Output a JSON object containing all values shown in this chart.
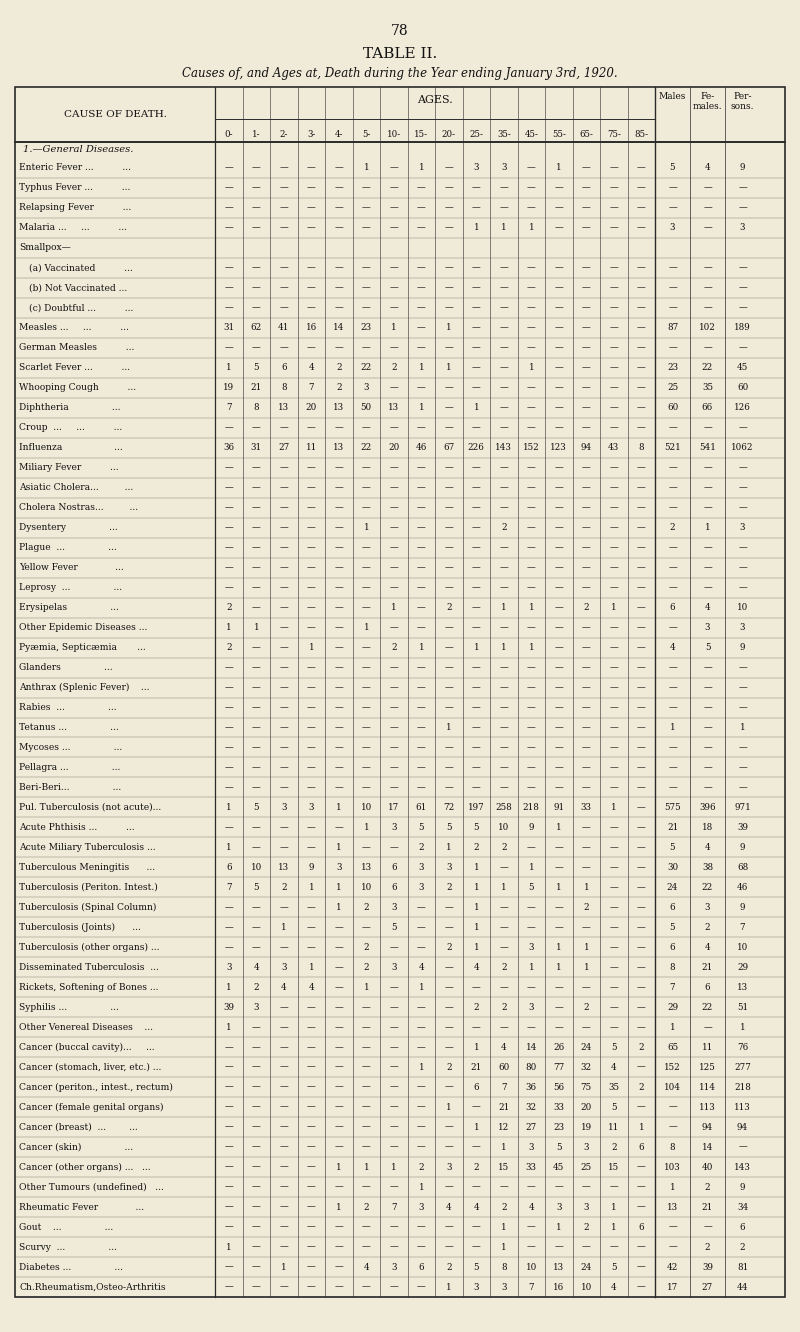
{
  "page_number": "78",
  "title": "TABLE II.",
  "subtitle": "Causes of, and Ages at, Death during the Year ending January 3rd, 1920.",
  "ages_header": "AGES.",
  "col_header_cause": "CAUSE OF DEATH.",
  "age_cols": [
    "0-",
    "1-",
    "2-",
    "3-",
    "4-",
    "5-",
    "10-",
    "15-",
    "20-",
    "25-",
    "35-",
    "45-",
    "55-",
    "65-",
    "75-",
    "85-"
  ],
  "section_header": "1.—General Diseases.",
  "rows": [
    [
      "Enteric Fever ...          ...",
      "—",
      "—",
      "—",
      "—",
      "—",
      "1",
      "—",
      "1",
      "—",
      "3",
      "3",
      "—",
      "1",
      "—",
      "—",
      "—",
      "5",
      "4",
      "9"
    ],
    [
      "Typhus Fever ...          ...",
      "—",
      "—",
      "—",
      "—",
      "—",
      "—",
      "—",
      "—",
      "—",
      "—",
      "—",
      "—",
      "—",
      "—",
      "—",
      "—",
      "—",
      "—",
      "—"
    ],
    [
      "Relapsing Fever          ...",
      "—",
      "—",
      "—",
      "—",
      "—",
      "—",
      "—",
      "—",
      "—",
      "—",
      "—",
      "—",
      "—",
      "—",
      "—",
      "—",
      "—",
      "—",
      "—"
    ],
    [
      "Malaria ...     ...          ...",
      "—",
      "—",
      "—",
      "—",
      "—",
      "—",
      "—",
      "—",
      "—",
      "1",
      "1",
      "1",
      "—",
      "—",
      "—",
      "—",
      "3",
      "—",
      "3"
    ],
    [
      "Smallpox—",
      "",
      "",
      "",
      "",
      "",
      "",
      "",
      "",
      "",
      "",
      "",
      "",
      "",
      "",
      "",
      "",
      "",
      "",
      ""
    ],
    [
      "  (a) Vaccinated          ...",
      "—",
      "—",
      "—",
      "—",
      "—",
      "—",
      "—",
      "—",
      "—",
      "—",
      "—",
      "—",
      "—",
      "—",
      "—",
      "—",
      "—",
      "—",
      "—"
    ],
    [
      "  (b) Not Vaccinated ...",
      "—",
      "—",
      "—",
      "—",
      "—",
      "—",
      "—",
      "—",
      "—",
      "—",
      "—",
      "—",
      "—",
      "—",
      "—",
      "—",
      "—",
      "—",
      "—"
    ],
    [
      "  (c) Doubtful ...          ...",
      "—",
      "—",
      "—",
      "—",
      "—",
      "—",
      "—",
      "—",
      "—",
      "—",
      "—",
      "—",
      "—",
      "—",
      "—",
      "—",
      "—",
      "—",
      "—"
    ],
    [
      "Measles ...     ...          ...",
      "31",
      "62",
      "41",
      "16",
      "14",
      "23",
      "1",
      "—",
      "1",
      "—",
      "—",
      "—",
      "—",
      "—",
      "—",
      "—",
      "87",
      "102",
      "189"
    ],
    [
      "German Measles          ...",
      "—",
      "—",
      "—",
      "—",
      "—",
      "—",
      "—",
      "—",
      "—",
      "—",
      "—",
      "—",
      "—",
      "—",
      "—",
      "—",
      "—",
      "—",
      "—"
    ],
    [
      "Scarlet Fever ...          ...",
      "1",
      "5",
      "6",
      "4",
      "2",
      "22",
      "2",
      "1",
      "1",
      "—",
      "—",
      "1",
      "—",
      "—",
      "—",
      "—",
      "23",
      "22",
      "45"
    ],
    [
      "Whooping Cough          ...",
      "19",
      "21",
      "8",
      "7",
      "2",
      "3",
      "—",
      "—",
      "—",
      "—",
      "—",
      "—",
      "—",
      "—",
      "—",
      "—",
      "25",
      "35",
      "60"
    ],
    [
      "Diphtheria               ...",
      "7",
      "8",
      "13",
      "20",
      "13",
      "50",
      "13",
      "1",
      "—",
      "1",
      "—",
      "—",
      "—",
      "—",
      "—",
      "—",
      "60",
      "66",
      "126"
    ],
    [
      "Croup  ...     ...          ...",
      "—",
      "—",
      "—",
      "—",
      "—",
      "—",
      "—",
      "—",
      "—",
      "—",
      "—",
      "—",
      "—",
      "—",
      "—",
      "—",
      "—",
      "—",
      "—"
    ],
    [
      "Influenza                  ...",
      "36",
      "31",
      "27",
      "11",
      "13",
      "22",
      "20",
      "46",
      "67",
      "226",
      "143",
      "152",
      "123",
      "94",
      "43",
      "8",
      "521",
      "541",
      "1062"
    ],
    [
      "Miliary Fever          ...",
      "—",
      "—",
      "—",
      "—",
      "—",
      "—",
      "—",
      "—",
      "—",
      "—",
      "—",
      "—",
      "—",
      "—",
      "—",
      "—",
      "—",
      "—",
      "—"
    ],
    [
      "Asiatic Cholera...         ...",
      "—",
      "—",
      "—",
      "—",
      "—",
      "—",
      "—",
      "—",
      "—",
      "—",
      "—",
      "—",
      "—",
      "—",
      "—",
      "—",
      "—",
      "—",
      "—"
    ],
    [
      "Cholera Nostras...         ...",
      "—",
      "—",
      "—",
      "—",
      "—",
      "—",
      "—",
      "—",
      "—",
      "—",
      "—",
      "—",
      "—",
      "—",
      "—",
      "—",
      "—",
      "—",
      "—"
    ],
    [
      "Dysentery               ...",
      "—",
      "—",
      "—",
      "—",
      "—",
      "1",
      "—",
      "—",
      "—",
      "—",
      "2",
      "—",
      "—",
      "—",
      "—",
      "—",
      "2",
      "1",
      "3"
    ],
    [
      "Plague  ...               ...",
      "—",
      "—",
      "—",
      "—",
      "—",
      "—",
      "—",
      "—",
      "—",
      "—",
      "—",
      "—",
      "—",
      "—",
      "—",
      "—",
      "—",
      "—",
      "—"
    ],
    [
      "Yellow Fever             ...",
      "—",
      "—",
      "—",
      "—",
      "—",
      "—",
      "—",
      "—",
      "—",
      "—",
      "—",
      "—",
      "—",
      "—",
      "—",
      "—",
      "—",
      "—",
      "—"
    ],
    [
      "Leprosy  ...               ...",
      "—",
      "—",
      "—",
      "—",
      "—",
      "—",
      "—",
      "—",
      "—",
      "—",
      "—",
      "—",
      "—",
      "—",
      "—",
      "—",
      "—",
      "—",
      "—"
    ],
    [
      "Erysipelas               ...",
      "2",
      "—",
      "—",
      "—",
      "—",
      "—",
      "1",
      "—",
      "2",
      "—",
      "1",
      "1",
      "—",
      "2",
      "1",
      "—",
      "6",
      "4",
      "10"
    ],
    [
      "Other Epidemic Diseases ...",
      "1",
      "1",
      "—",
      "—",
      "—",
      "1",
      "—",
      "—",
      "—",
      "—",
      "—",
      "—",
      "—",
      "—",
      "—",
      "—",
      "—",
      "3",
      "3"
    ],
    [
      "Pyæmia, Septicæmia       ...",
      "2",
      "—",
      "—",
      "1",
      "—",
      "—",
      "2",
      "1",
      "—",
      "1",
      "1",
      "1",
      "—",
      "—",
      "—",
      "—",
      "4",
      "5",
      "9"
    ],
    [
      "Glanders               ...",
      "—",
      "—",
      "—",
      "—",
      "—",
      "—",
      "—",
      "—",
      "—",
      "—",
      "—",
      "—",
      "—",
      "—",
      "—",
      "—",
      "—",
      "—",
      "—"
    ],
    [
      "Anthrax (Splenic Fever)    ...",
      "—",
      "—",
      "—",
      "—",
      "—",
      "—",
      "—",
      "—",
      "—",
      "—",
      "—",
      "—",
      "—",
      "—",
      "—",
      "—",
      "—",
      "—",
      "—"
    ],
    [
      "Rabies  ...               ...",
      "—",
      "—",
      "—",
      "—",
      "—",
      "—",
      "—",
      "—",
      "—",
      "—",
      "—",
      "—",
      "—",
      "—",
      "—",
      "—",
      "—",
      "—",
      "—"
    ],
    [
      "Tetanus ...               ...",
      "—",
      "—",
      "—",
      "—",
      "—",
      "—",
      "—",
      "—",
      "1",
      "—",
      "—",
      "—",
      "—",
      "—",
      "—",
      "—",
      "1",
      "—",
      "1"
    ],
    [
      "Mycoses ...               ...",
      "—",
      "—",
      "—",
      "—",
      "—",
      "—",
      "—",
      "—",
      "—",
      "—",
      "—",
      "—",
      "—",
      "—",
      "—",
      "—",
      "—",
      "—",
      "—"
    ],
    [
      "Pellagra ...               ...",
      "—",
      "—",
      "—",
      "—",
      "—",
      "—",
      "—",
      "—",
      "—",
      "—",
      "—",
      "—",
      "—",
      "—",
      "—",
      "—",
      "—",
      "—",
      "—"
    ],
    [
      "Beri-Beri...               ...",
      "—",
      "—",
      "—",
      "—",
      "—",
      "—",
      "—",
      "—",
      "—",
      "—",
      "—",
      "—",
      "—",
      "—",
      "—",
      "—",
      "—",
      "—",
      "—"
    ],
    [
      "Pul. Tuberculosis (not acute)...",
      "1",
      "5",
      "3",
      "3",
      "1",
      "10",
      "17",
      "61",
      "72",
      "197",
      "258",
      "218",
      "91",
      "33",
      "1",
      "—",
      "575",
      "396",
      "971"
    ],
    [
      "Acute Phthisis ...          ...",
      "—",
      "—",
      "—",
      "—",
      "—",
      "1",
      "3",
      "5",
      "5",
      "5",
      "10",
      "9",
      "1",
      "—",
      "—",
      "—",
      "21",
      "18",
      "39"
    ],
    [
      "Acute Miliary Tuberculosis ...",
      "1",
      "—",
      "—",
      "—",
      "1",
      "—",
      "—",
      "2",
      "1",
      "2",
      "2",
      "—",
      "—",
      "—",
      "—",
      "—",
      "5",
      "4",
      "9"
    ],
    [
      "Tuberculous Meningitis      ...",
      "6",
      "10",
      "13",
      "9",
      "3",
      "13",
      "6",
      "3",
      "3",
      "1",
      "—",
      "1",
      "—",
      "—",
      "—",
      "—",
      "30",
      "38",
      "68"
    ],
    [
      "Tuberculosis (Periton. Intest.)",
      "7",
      "5",
      "2",
      "1",
      "1",
      "10",
      "6",
      "3",
      "2",
      "1",
      "1",
      "5",
      "1",
      "1",
      "—",
      "—",
      "24",
      "22",
      "46"
    ],
    [
      "Tuberculosis (Spinal Column)",
      "—",
      "—",
      "—",
      "—",
      "1",
      "2",
      "3",
      "—",
      "—",
      "1",
      "—",
      "—",
      "—",
      "2",
      "—",
      "—",
      "6",
      "3",
      "9"
    ],
    [
      "Tuberculosis (Joints)      ...",
      "—",
      "—",
      "1",
      "—",
      "—",
      "—",
      "5",
      "—",
      "—",
      "1",
      "—",
      "—",
      "—",
      "—",
      "—",
      "—",
      "5",
      "2",
      "7"
    ],
    [
      "Tuberculosis (other organs) ...",
      "—",
      "—",
      "—",
      "—",
      "—",
      "2",
      "—",
      "—",
      "2",
      "1",
      "—",
      "3",
      "1",
      "1",
      "—",
      "—",
      "6",
      "4",
      "10"
    ],
    [
      "Disseminated Tuberculosis  ...",
      "3",
      "4",
      "3",
      "1",
      "—",
      "2",
      "3",
      "4",
      "—",
      "4",
      "2",
      "1",
      "1",
      "1",
      "—",
      "—",
      "8",
      "21",
      "29"
    ],
    [
      "Rickets, Softening of Bones ...",
      "1",
      "2",
      "4",
      "4",
      "—",
      "1",
      "—",
      "1",
      "—",
      "—",
      "—",
      "—",
      "—",
      "—",
      "—",
      "—",
      "7",
      "6",
      "13"
    ],
    [
      "Syphilis ...               ...",
      "39",
      "3",
      "—",
      "—",
      "—",
      "—",
      "—",
      "—",
      "—",
      "2",
      "2",
      "3",
      "—",
      "2",
      "—",
      "—",
      "29",
      "22",
      "51"
    ],
    [
      "Other Venereal Diseases    ...",
      "1",
      "—",
      "—",
      "—",
      "—",
      "—",
      "—",
      "—",
      "—",
      "—",
      "—",
      "—",
      "—",
      "—",
      "—",
      "—",
      "1",
      "—",
      "1"
    ],
    [
      "Cancer (buccal cavity)...     ...",
      "—",
      "—",
      "—",
      "—",
      "—",
      "—",
      "—",
      "—",
      "—",
      "1",
      "4",
      "14",
      "26",
      "24",
      "5",
      "2",
      "65",
      "11",
      "76"
    ],
    [
      "Cancer (stomach, liver, etc.) ...",
      "—",
      "—",
      "—",
      "—",
      "—",
      "—",
      "—",
      "1",
      "2",
      "21",
      "60",
      "80",
      "77",
      "32",
      "4",
      "—",
      "152",
      "125",
      "277"
    ],
    [
      "Cancer (periton., intest., rectum)",
      "—",
      "—",
      "—",
      "—",
      "—",
      "—",
      "—",
      "—",
      "—",
      "6",
      "7",
      "36",
      "56",
      "75",
      "35",
      "2",
      "104",
      "114",
      "218"
    ],
    [
      "Cancer (female genital organs)",
      "—",
      "—",
      "—",
      "—",
      "—",
      "—",
      "—",
      "—",
      "1",
      "—",
      "21",
      "32",
      "33",
      "20",
      "5",
      "—",
      "—",
      "113",
      "113"
    ],
    [
      "Cancer (breast)  ...        ...",
      "—",
      "—",
      "—",
      "—",
      "—",
      "—",
      "—",
      "—",
      "—",
      "1",
      "12",
      "27",
      "23",
      "19",
      "11",
      "1",
      "—",
      "94",
      "94"
    ],
    [
      "Cancer (skin)               ...",
      "—",
      "—",
      "—",
      "—",
      "—",
      "—",
      "—",
      "—",
      "—",
      "—",
      "1",
      "3",
      "5",
      "3",
      "2",
      "6",
      "8",
      "14",
      "—"
    ],
    [
      "Cancer (other organs) ...   ...",
      "—",
      "—",
      "—",
      "—",
      "1",
      "1",
      "1",
      "2",
      "3",
      "2",
      "15",
      "33",
      "45",
      "25",
      "15",
      "—",
      "103",
      "40",
      "143"
    ],
    [
      "Other Tumours (undefined)   ...",
      "—",
      "—",
      "—",
      "—",
      "—",
      "—",
      "—",
      "1",
      "—",
      "—",
      "—",
      "—",
      "—",
      "—",
      "—",
      "—",
      "1",
      "2",
      "9"
    ],
    [
      "Rheumatic Fever             ...",
      "—",
      "—",
      "—",
      "—",
      "1",
      "2",
      "7",
      "3",
      "4",
      "4",
      "2",
      "4",
      "3",
      "3",
      "1",
      "—",
      "13",
      "21",
      "34"
    ],
    [
      "Gout    ...               ...",
      "—",
      "—",
      "—",
      "—",
      "—",
      "—",
      "—",
      "—",
      "—",
      "—",
      "1",
      "—",
      "1",
      "2",
      "1",
      "6",
      "—",
      "—",
      "6"
    ],
    [
      "Scurvy  ...               ...",
      "1",
      "—",
      "—",
      "—",
      "—",
      "—",
      "—",
      "—",
      "—",
      "—",
      "1",
      "—",
      "—",
      "—",
      "—",
      "—",
      "—",
      "2",
      "2"
    ],
    [
      "Diabetes ...               ...",
      "—",
      "—",
      "1",
      "—",
      "—",
      "4",
      "3",
      "6",
      "2",
      "5",
      "8",
      "10",
      "13",
      "24",
      "5",
      "—",
      "42",
      "39",
      "81"
    ],
    [
      "Ch.Rheumatism,Osteo-Arthritis",
      "—",
      "—",
      "—",
      "—",
      "—",
      "—",
      "—",
      "—",
      "1",
      "3",
      "3",
      "7",
      "16",
      "10",
      "4",
      "—",
      "17",
      "27",
      "44"
    ]
  ],
  "bg_color": "#f0ead8",
  "text_color": "#111111",
  "line_color": "#2a2a2a"
}
